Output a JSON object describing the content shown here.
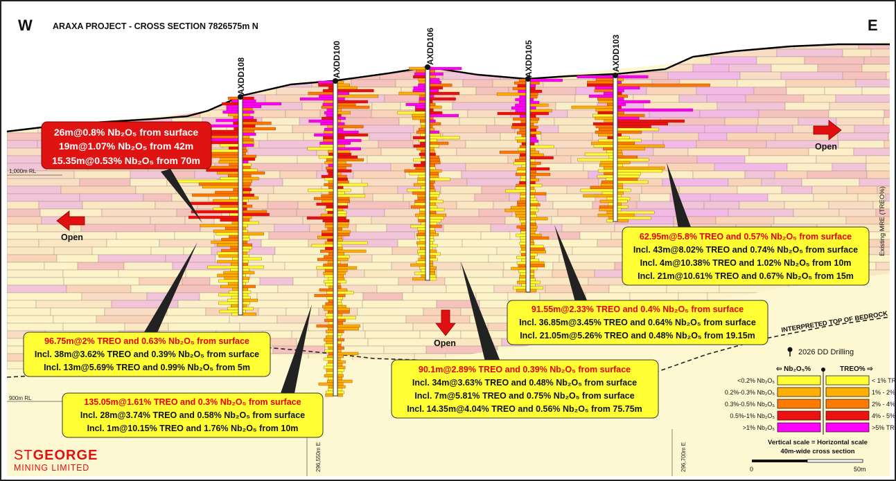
{
  "header": {
    "title": "ARAXA PROJECT - CROSS SECTION 7826575m N",
    "west": "W",
    "east": "E"
  },
  "rl_labels": {
    "upper": "1,000m RL",
    "lower": "900m RL"
  },
  "easting_labels": [
    "296,550m E",
    "296,700m E"
  ],
  "side_label": "Existing MRE (TREO%)",
  "bedrock_label": "INTERPRETED TOP OF BEDROCK",
  "open_label": "Open",
  "drillholes": [
    "AXDD108",
    "AXDD100",
    "AXDD106",
    "AXDD105",
    "AXDD103"
  ],
  "callouts": {
    "axdd108_nb": {
      "lines": [
        "26m@0.8% Nb₂O₅ from surface",
        "19m@1.07% Nb₂O₅ from 42m",
        "15.35m@0.53% Nb₂O₅ from 70m"
      ]
    },
    "axdd108": {
      "title": "96.75m@2% TREO and 0.63% Nb₂O₅ from surface",
      "lines": [
        "Incl. 38m@3.62% TREO and 0.39% Nb₂O₅ from surface",
        "Incl. 13m@5.69% TREO and 0.99% Nb₂O₅ from 5m"
      ]
    },
    "axdd100": {
      "title": "135.05m@1.61% TREO and 0.3% Nb₂O₅ from surface",
      "lines": [
        "Incl. 28m@3.74% TREO and 0.58% Nb₂O₅ from surface",
        "Incl. 1m@10.15% TREO and 1.76% Nb₂O₅ from 10m"
      ]
    },
    "axdd106": {
      "title": "90.1m@2.89% TREO and 0.39% Nb₂O₅ from surface",
      "lines": [
        "Incl. 34m@3.63% TREO and 0.48% Nb₂O₅ from surface",
        "Incl. 7m@5.81% TREO and 0.75% Nb₂O₅ from surface",
        "Incl. 14.35m@4.04% TREO and 0.56% Nb₂O₅ from 75.75m"
      ]
    },
    "axdd105": {
      "title": "91.55m@2.33% TREO and 0.4% Nb₂O₅ from surface",
      "lines": [
        "Incl. 36.85m@3.45% TREO and 0.64% Nb₂O₅ from surface",
        "Incl. 21.05m@5.26% TREO and 0.48% Nb₂O₅ from 19.15m"
      ]
    },
    "axdd103": {
      "title": "62.95m@5.8% TREO and 0.57% Nb₂O₅ from surface",
      "lines": [
        "Incl. 43m@8.02% TREO and 0.74% Nb₂O₅ from surface",
        "Incl. 4m@10.38% TREO and 1.02% Nb₂O₅ from 10m",
        "Incl. 21m@10.61% TREO and 0.67% Nb₂O₅ from 15m"
      ]
    }
  },
  "legend": {
    "drilling_label": "2026 DD Drilling",
    "nb_header": "⇦ Nb₂O₅%",
    "treo_header": "TREO% ⇨",
    "nb_ranges": [
      "<0.2% Nb₂O₅",
      "0.2%-0.3% Nb₂O₅",
      "0.3%-0.5% Nb₂O₅",
      "0.5%-1% Nb₂O₅",
      ">1% Nb₂O₅"
    ],
    "treo_ranges": [
      "< 1% TREO",
      "1% - 2% TREO",
      "2% - 4% TREO",
      "4% - 5% TREO",
      ">5% TREO"
    ],
    "colors": [
      "#ffff33",
      "#ffb000",
      "#ff7a00",
      "#ee1111",
      "#ff00ff"
    ],
    "scale_note_1": "Vertical scale = Horizontal scale",
    "scale_note_2": "40m-wide cross section",
    "scale_start": "0",
    "scale_end": "50m"
  },
  "logo": {
    "line1_a": "ST",
    "line1_b": "GEORGE",
    "line2": "MINING LIMITED"
  }
}
